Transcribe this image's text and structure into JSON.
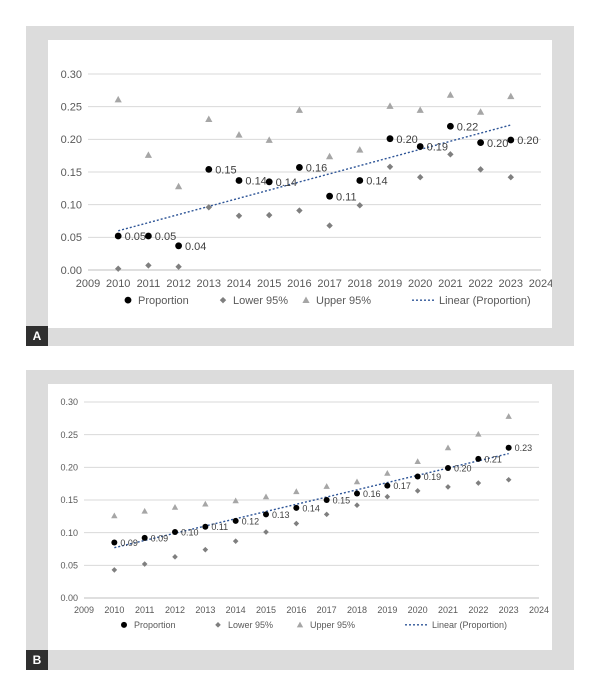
{
  "panels": [
    {
      "label": "A"
    },
    {
      "label": "B"
    }
  ],
  "legend": {
    "proportion": "Proportion",
    "lower": "Lower 95%",
    "upper": "Upper 95%",
    "linear": "Linear (Proportion)"
  },
  "colors": {
    "proportion": "#000000",
    "lower": "#7f7f7f",
    "upper": "#a6a6a6",
    "trend": "#2e5597",
    "grid": "#d9d9d9",
    "panel_bg": "#dcdcdc",
    "label_bg": "#2f2f2f"
  },
  "chart_data": [
    {
      "type": "scatter",
      "panel": "A",
      "title": "",
      "xlabel": "",
      "ylabel": "",
      "xlim": [
        2009,
        2024
      ],
      "ylim": [
        0,
        0.3
      ],
      "xticks": [
        "2009",
        "2010",
        "2011",
        "2012",
        "2013",
        "2014",
        "2015",
        "2016",
        "2017",
        "2018",
        "2019",
        "2020",
        "2021",
        "2022",
        "2023",
        "2024"
      ],
      "yticks": [
        "0.00",
        "0.05",
        "0.10",
        "0.15",
        "0.20",
        "0.25",
        "0.30"
      ],
      "x": [
        2010,
        2011,
        2012,
        2013,
        2014,
        2015,
        2016,
        2017,
        2018,
        2019,
        2020,
        2021,
        2022,
        2023
      ],
      "grid": true,
      "legend_position": "bottom",
      "series": [
        {
          "name": "Proportion",
          "marker": "circle",
          "values": [
            0.052,
            0.052,
            0.037,
            0.154,
            0.137,
            0.135,
            0.157,
            0.113,
            0.137,
            0.201,
            0.189,
            0.22,
            0.195,
            0.199
          ],
          "labels": [
            "0.05",
            "0.05",
            "0.04",
            "0.15",
            "0.14",
            "0.14",
            "0.16",
            "0.11",
            "0.14",
            "0.20",
            "0.19",
            "0.22",
            "0.20",
            "0.20"
          ]
        },
        {
          "name": "Lower 95%",
          "marker": "diamond",
          "values": [
            0.002,
            0.007,
            0.005,
            0.096,
            0.083,
            0.084,
            0.091,
            0.068,
            0.099,
            0.158,
            0.142,
            0.177,
            0.154,
            0.142
          ]
        },
        {
          "name": "Upper 95%",
          "marker": "triangle",
          "values": [
            0.261,
            0.176,
            0.128,
            0.231,
            0.207,
            0.199,
            0.245,
            0.174,
            0.184,
            0.251,
            0.245,
            0.268,
            0.242,
            0.266
          ]
        },
        {
          "name": "Linear (Proportion)",
          "kind": "trendline",
          "from": [
            2010,
            0.06
          ],
          "to": [
            2023,
            0.222
          ]
        }
      ]
    },
    {
      "type": "scatter",
      "panel": "B",
      "title": "",
      "xlabel": "",
      "ylabel": "",
      "xlim": [
        2009,
        2024
      ],
      "ylim": [
        0,
        0.3
      ],
      "xticks": [
        "2009",
        "2010",
        "2011",
        "2012",
        "2013",
        "2014",
        "2015",
        "2016",
        "2017",
        "2018",
        "2019",
        "2020",
        "2021",
        "2022",
        "2023",
        "2024"
      ],
      "yticks": [
        "0.00",
        "0.05",
        "0.10",
        "0.15",
        "0.20",
        "0.25",
        "0.30"
      ],
      "x": [
        2010,
        2011,
        2012,
        2013,
        2014,
        2015,
        2016,
        2017,
        2018,
        2019,
        2020,
        2021,
        2022,
        2023
      ],
      "grid": true,
      "legend_position": "bottom",
      "series": [
        {
          "name": "Proportion",
          "marker": "circle",
          "values": [
            0.085,
            0.092,
            0.101,
            0.109,
            0.118,
            0.128,
            0.138,
            0.15,
            0.16,
            0.172,
            0.186,
            0.199,
            0.213,
            0.23
          ],
          "labels": [
            "0.09",
            "0.09",
            "0.10",
            "0.11",
            "0.12",
            "0.13",
            "0.14",
            "0.15",
            "0.16",
            "0.17",
            "0.19",
            "0.20",
            "0.21",
            "0.23"
          ]
        },
        {
          "name": "Lower 95%",
          "marker": "diamond",
          "values": [
            0.043,
            0.052,
            0.063,
            0.074,
            0.087,
            0.101,
            0.114,
            0.128,
            0.142,
            0.155,
            0.164,
            0.17,
            0.176,
            0.181
          ]
        },
        {
          "name": "Upper 95%",
          "marker": "triangle",
          "values": [
            0.126,
            0.133,
            0.139,
            0.144,
            0.149,
            0.155,
            0.163,
            0.171,
            0.178,
            0.191,
            0.209,
            0.23,
            0.251,
            0.278
          ]
        },
        {
          "name": "Linear (Proportion)",
          "kind": "trendline",
          "from": [
            2010,
            0.077
          ],
          "to": [
            2023,
            0.221
          ]
        }
      ]
    }
  ]
}
